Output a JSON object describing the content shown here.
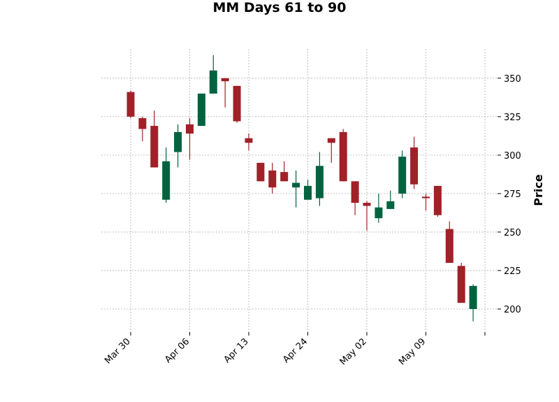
{
  "chart_data": {
    "type": "candlestick",
    "title": "MM Days 61 to 90",
    "xlabel": "",
    "ylabel": "Price",
    "ylim": [
      185,
      369
    ],
    "grid": true,
    "y_ticks": [
      200,
      225,
      250,
      275,
      300,
      325,
      350
    ],
    "x_tick_labels": [
      {
        "label": "Mar 30",
        "index": 0
      },
      {
        "label": "Apr 06",
        "index": 5
      },
      {
        "label": "Apr 13",
        "index": 10
      },
      {
        "label": "Apr 24",
        "index": 15
      },
      {
        "label": "May 02",
        "index": 20
      },
      {
        "label": "May 09",
        "index": 25
      },
      {
        "label": "",
        "index": 30
      }
    ],
    "colors": {
      "up": "#006340",
      "down": "#a02128"
    },
    "candles": [
      {
        "open": 341,
        "high": 342,
        "low": 324,
        "close": 325
      },
      {
        "open": 324,
        "high": 325,
        "low": 309,
        "close": 317
      },
      {
        "open": 319,
        "high": 329,
        "low": 292,
        "close": 292
      },
      {
        "open": 271,
        "high": 305,
        "low": 269,
        "close": 296
      },
      {
        "open": 302,
        "high": 320,
        "low": 292,
        "close": 315
      },
      {
        "open": 320,
        "high": 324,
        "low": 297,
        "close": 314
      },
      {
        "open": 319,
        "high": 340,
        "low": 319,
        "close": 340
      },
      {
        "open": 340,
        "high": 365,
        "low": 340,
        "close": 355
      },
      {
        "open": 350,
        "high": 350,
        "low": 331,
        "close": 348
      },
      {
        "open": 345,
        "high": 345,
        "low": 321,
        "close": 322
      },
      {
        "open": 311,
        "high": 314,
        "low": 303,
        "close": 308
      },
      {
        "open": 295,
        "high": 295,
        "low": 283,
        "close": 283
      },
      {
        "open": 290,
        "high": 295,
        "low": 275,
        "close": 279
      },
      {
        "open": 289,
        "high": 296,
        "low": 283,
        "close": 283
      },
      {
        "open": 279,
        "high": 290,
        "low": 266,
        "close": 282
      },
      {
        "open": 271,
        "high": 284,
        "low": 271,
        "close": 280
      },
      {
        "open": 272,
        "high": 302,
        "low": 267,
        "close": 293
      },
      {
        "open": 311,
        "high": 311,
        "low": 295,
        "close": 308
      },
      {
        "open": 315,
        "high": 317,
        "low": 283,
        "close": 283
      },
      {
        "open": 283,
        "high": 283,
        "low": 261,
        "close": 269
      },
      {
        "open": 269,
        "high": 270,
        "low": 251,
        "close": 267
      },
      {
        "open": 259,
        "high": 275,
        "low": 256,
        "close": 266
      },
      {
        "open": 265,
        "high": 277,
        "low": 265,
        "close": 270
      },
      {
        "open": 275,
        "high": 303,
        "low": 272,
        "close": 299
      },
      {
        "open": 305,
        "high": 312,
        "low": 278,
        "close": 281
      },
      {
        "open": 273,
        "high": 275,
        "low": 264,
        "close": 272
      },
      {
        "open": 280,
        "high": 280,
        "low": 260,
        "close": 261
      },
      {
        "open": 252,
        "high": 257,
        "low": 230,
        "close": 230
      },
      {
        "open": 228,
        "high": 230,
        "low": 204,
        "close": 204
      },
      {
        "open": 200,
        "high": 216,
        "low": 192,
        "close": 215
      }
    ]
  }
}
